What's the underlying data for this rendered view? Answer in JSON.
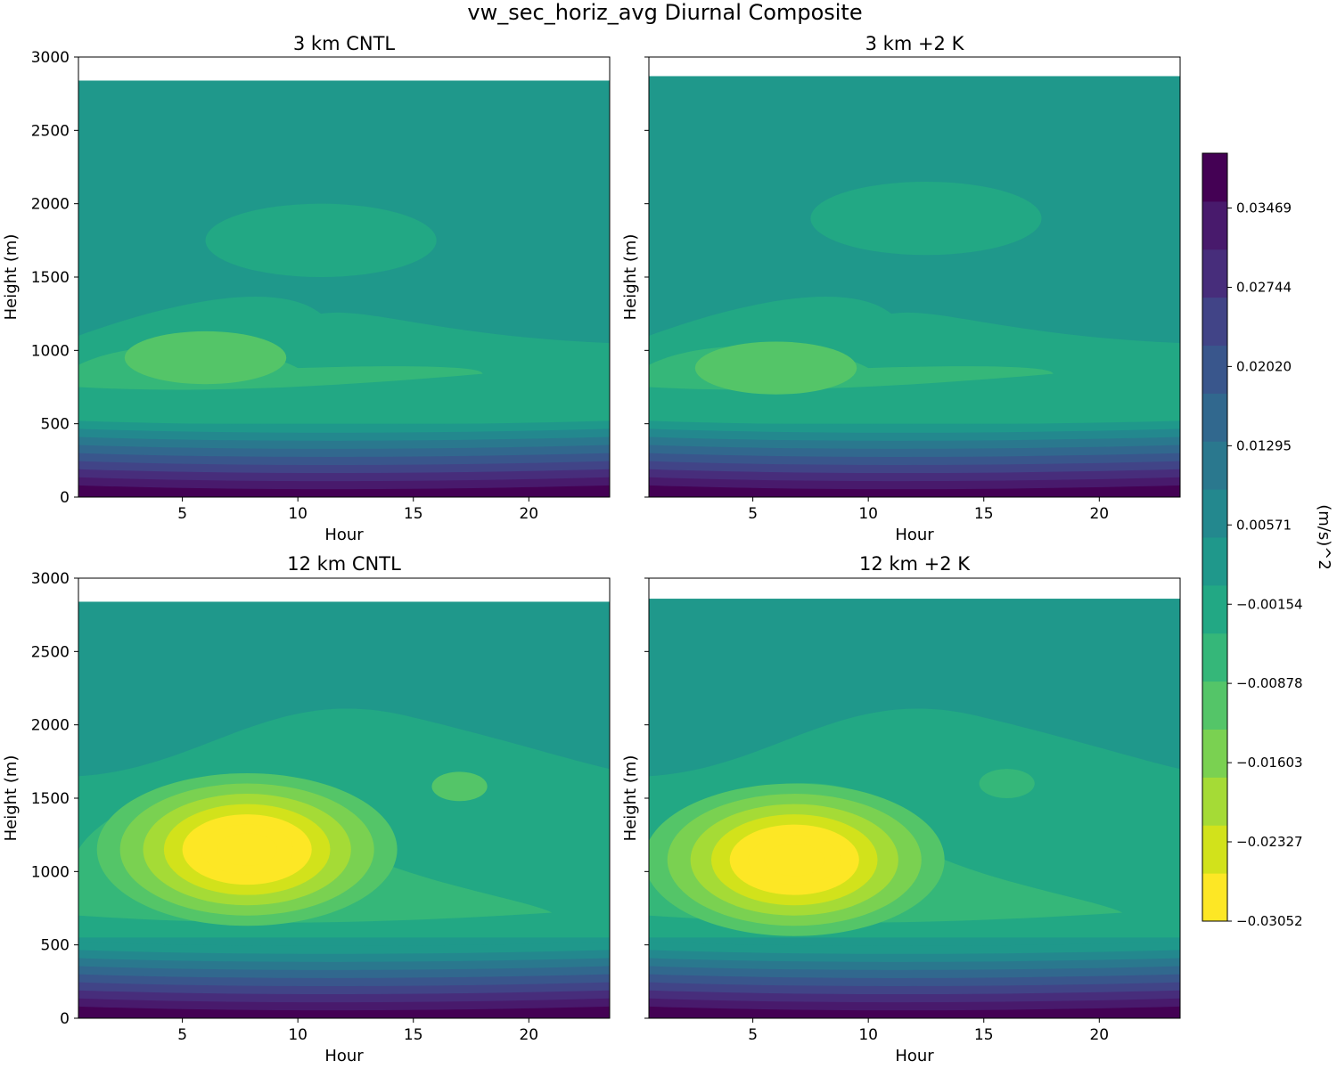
{
  "suptitle": "vw_sec_horiz_avg Diurnal Composite",
  "colorbar": {
    "label": "(m/s)^2",
    "range": [
      -0.03052,
      0.0397
    ],
    "tick_labels": [
      "0.03469",
      "0.02744",
      "0.02020",
      "0.01295",
      "0.00571",
      "−0.00154",
      "−0.00878",
      "−0.01603",
      "−0.02327",
      "−0.03052"
    ],
    "colors": [
      "#fde725",
      "#d2e21b",
      "#a5db36",
      "#7ad151",
      "#54c568",
      "#35b779",
      "#22a884",
      "#1f988b",
      "#23888e",
      "#2a788e",
      "#31688e",
      "#39568c",
      "#414487",
      "#472d7b",
      "#481a6c",
      "#440154"
    ]
  },
  "chart_data": [
    {
      "type": "contourf",
      "title": "3 km CNTL",
      "xlabel": "Hour",
      "ylabel": "Height (m)",
      "xlim": [
        0.5,
        23.5
      ],
      "ylim": [
        0,
        3000
      ],
      "xticks": [
        "5",
        "10",
        "15",
        "20"
      ],
      "yticks": [
        "0",
        "500",
        "1000",
        "1500",
        "2000",
        "2500",
        "3000"
      ],
      "data_top": 2840,
      "features": [
        {
          "desc": "weak negative plume",
          "x": 6,
          "y": 950,
          "level": 4
        },
        {
          "desc": "upper weak negative patch",
          "x": 11,
          "y": 1750,
          "level": 5
        },
        {
          "desc": "negative tongue",
          "x": 13,
          "y": 820,
          "level": 5
        }
      ]
    },
    {
      "type": "contourf",
      "title": "3 km +2 K",
      "xlabel": "Hour",
      "ylabel": "Height (m)",
      "xlim": [
        0.5,
        23.5
      ],
      "ylim": [
        0,
        3000
      ],
      "xticks": [
        "5",
        "10",
        "15",
        "20"
      ],
      "yticks": [
        "0",
        "500",
        "1000",
        "1500",
        "2000",
        "2500",
        "3000"
      ],
      "data_top": 2870,
      "features": [
        {
          "desc": "weak negative plume",
          "x": 6,
          "y": 880,
          "level": 4
        },
        {
          "desc": "upper weak negative patch",
          "x": 12.5,
          "y": 1900,
          "level": 5
        },
        {
          "desc": "negative tongue",
          "x": 12,
          "y": 830,
          "level": 5
        }
      ]
    },
    {
      "type": "contourf",
      "title": "12 km CNTL",
      "xlabel": "Hour",
      "ylabel": "Height (m)",
      "xlim": [
        0.5,
        23.5
      ],
      "ylim": [
        0,
        3000
      ],
      "xticks": [
        "5",
        "10",
        "15",
        "20"
      ],
      "yticks": [
        "0",
        "500",
        "1000",
        "1500",
        "2000",
        "2500",
        "3000"
      ],
      "data_top": 2840,
      "features": [
        {
          "desc": "negative core",
          "x": 7.5,
          "y": 1120,
          "level": 0,
          "min": -0.0305
        },
        {
          "desc": "small patch",
          "x": 17,
          "y": 1580,
          "level": 4
        }
      ]
    },
    {
      "type": "contourf",
      "title": "12 km +2 K",
      "xlabel": "Hour",
      "ylabel": "Height (m)",
      "xlim": [
        0.5,
        23.5
      ],
      "ylim": [
        0,
        3000
      ],
      "xticks": [
        "5",
        "10",
        "15",
        "20"
      ],
      "yticks": [
        "0",
        "500",
        "1000",
        "1500",
        "2000",
        "2500",
        "3000"
      ],
      "data_top": 2860,
      "features": [
        {
          "desc": "negative core",
          "x": 6.5,
          "y": 1050,
          "level": 0,
          "min": -0.0305
        },
        {
          "desc": "small patch",
          "x": 16,
          "y": 1600,
          "level": 5
        }
      ]
    }
  ]
}
